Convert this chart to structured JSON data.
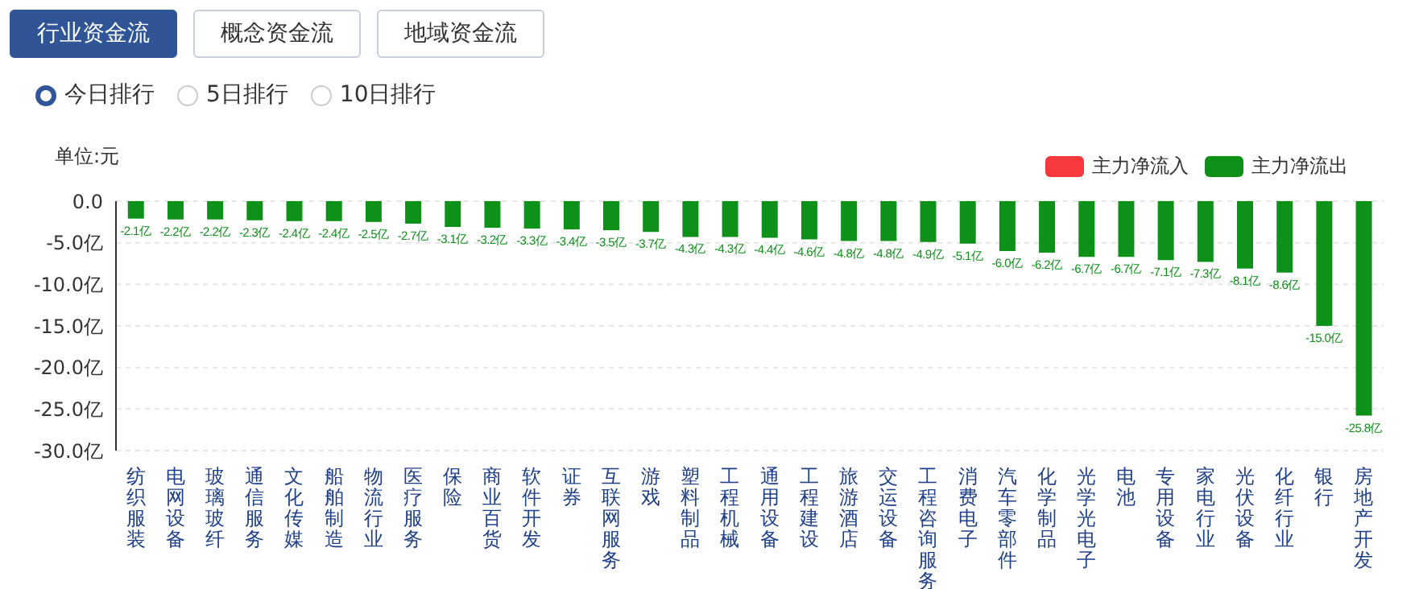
{
  "chart_data": {
    "type": "bar",
    "ylabel": "单位:元",
    "annotations": [
      "行业资金流",
      "概念资金流",
      "地域资金流",
      "今日排行",
      "5日排行",
      "10日排行"
    ],
    "categories": [
      "纺织服装",
      "电网设备",
      "玻璃玻纤",
      "通信服务",
      "文化传媒",
      "船舶制造",
      "物流行业",
      "医疗服务",
      "保险",
      "商业百货",
      "软件开发",
      "证券",
      "互联网服务",
      "游戏",
      "塑料制品",
      "工程机械",
      "通用设备",
      "工程建设",
      "旅游酒店",
      "交运设备",
      "工程咨询服务",
      "消费电子",
      "汽车零部件",
      "化学制品",
      "光学光电子",
      "电池",
      "专用设备",
      "家电行业",
      "光伏设备",
      "化纤行业",
      "银行",
      "房地产开发"
    ],
    "stacked": true,
    "series": [
      {
        "name": "主力净流入",
        "color": "#f5393c",
        "values": [
          null,
          null,
          null,
          null,
          null,
          null,
          null,
          null,
          null,
          null,
          null,
          null,
          null,
          null,
          null,
          null,
          null,
          null,
          null,
          null,
          null,
          null,
          null,
          null,
          null,
          null,
          null,
          null,
          null,
          null,
          null,
          null
        ]
      },
      {
        "name": "主力净流出",
        "color": "#0e9119",
        "values": [
          -2.1,
          -2.2,
          -2.2,
          -2.3,
          -2.4,
          -2.4,
          -2.5,
          -2.7,
          -3.1,
          -3.2,
          -3.3,
          -3.4,
          -3.5,
          -3.7,
          -4.3,
          -4.3,
          -4.4,
          -4.6,
          -4.8,
          -4.8,
          -4.9,
          -5.1,
          -6.0,
          -6.2,
          -6.7,
          -6.7,
          -7.1,
          -7.3,
          -8.1,
          -8.6,
          -15.0,
          -25.8
        ],
        "value_labels": [
          "-2.1亿",
          "-2.2亿",
          "-2.2亿",
          "-2.3亿",
          "-2.4亿",
          "-2.4亿",
          "-2.5亿",
          "-2.7亿",
          "-3.1亿",
          "-3.2亿",
          "-3.3亿",
          "-3.4亿",
          "-3.5亿",
          "-3.7亿",
          "-4.3亿",
          "-4.3亿",
          "-4.4亿",
          "-4.6亿",
          "-4.8亿",
          "-4.8亿",
          "-4.9亿",
          "-5.1亿",
          "-6.0亿",
          "-6.2亿",
          "-6.7亿",
          "-6.7亿",
          "-7.1亿",
          "-7.3亿",
          "-8.1亿",
          "-8.6亿",
          "-15.0亿",
          "-25.8亿"
        ]
      }
    ],
    "ylim": [
      -30,
      0
    ],
    "yticks": [
      {
        "value": 0,
        "label": "0.0"
      },
      {
        "value": -5,
        "label": "-5.0亿"
      },
      {
        "value": -10,
        "label": "-10.0亿"
      },
      {
        "value": -15,
        "label": "-15.0亿"
      },
      {
        "value": -20,
        "label": "-20.0亿"
      },
      {
        "value": -25,
        "label": "-25.0亿"
      },
      {
        "value": -30,
        "label": "-30.0亿"
      }
    ],
    "grid": "y",
    "legend": "top right"
  }
}
